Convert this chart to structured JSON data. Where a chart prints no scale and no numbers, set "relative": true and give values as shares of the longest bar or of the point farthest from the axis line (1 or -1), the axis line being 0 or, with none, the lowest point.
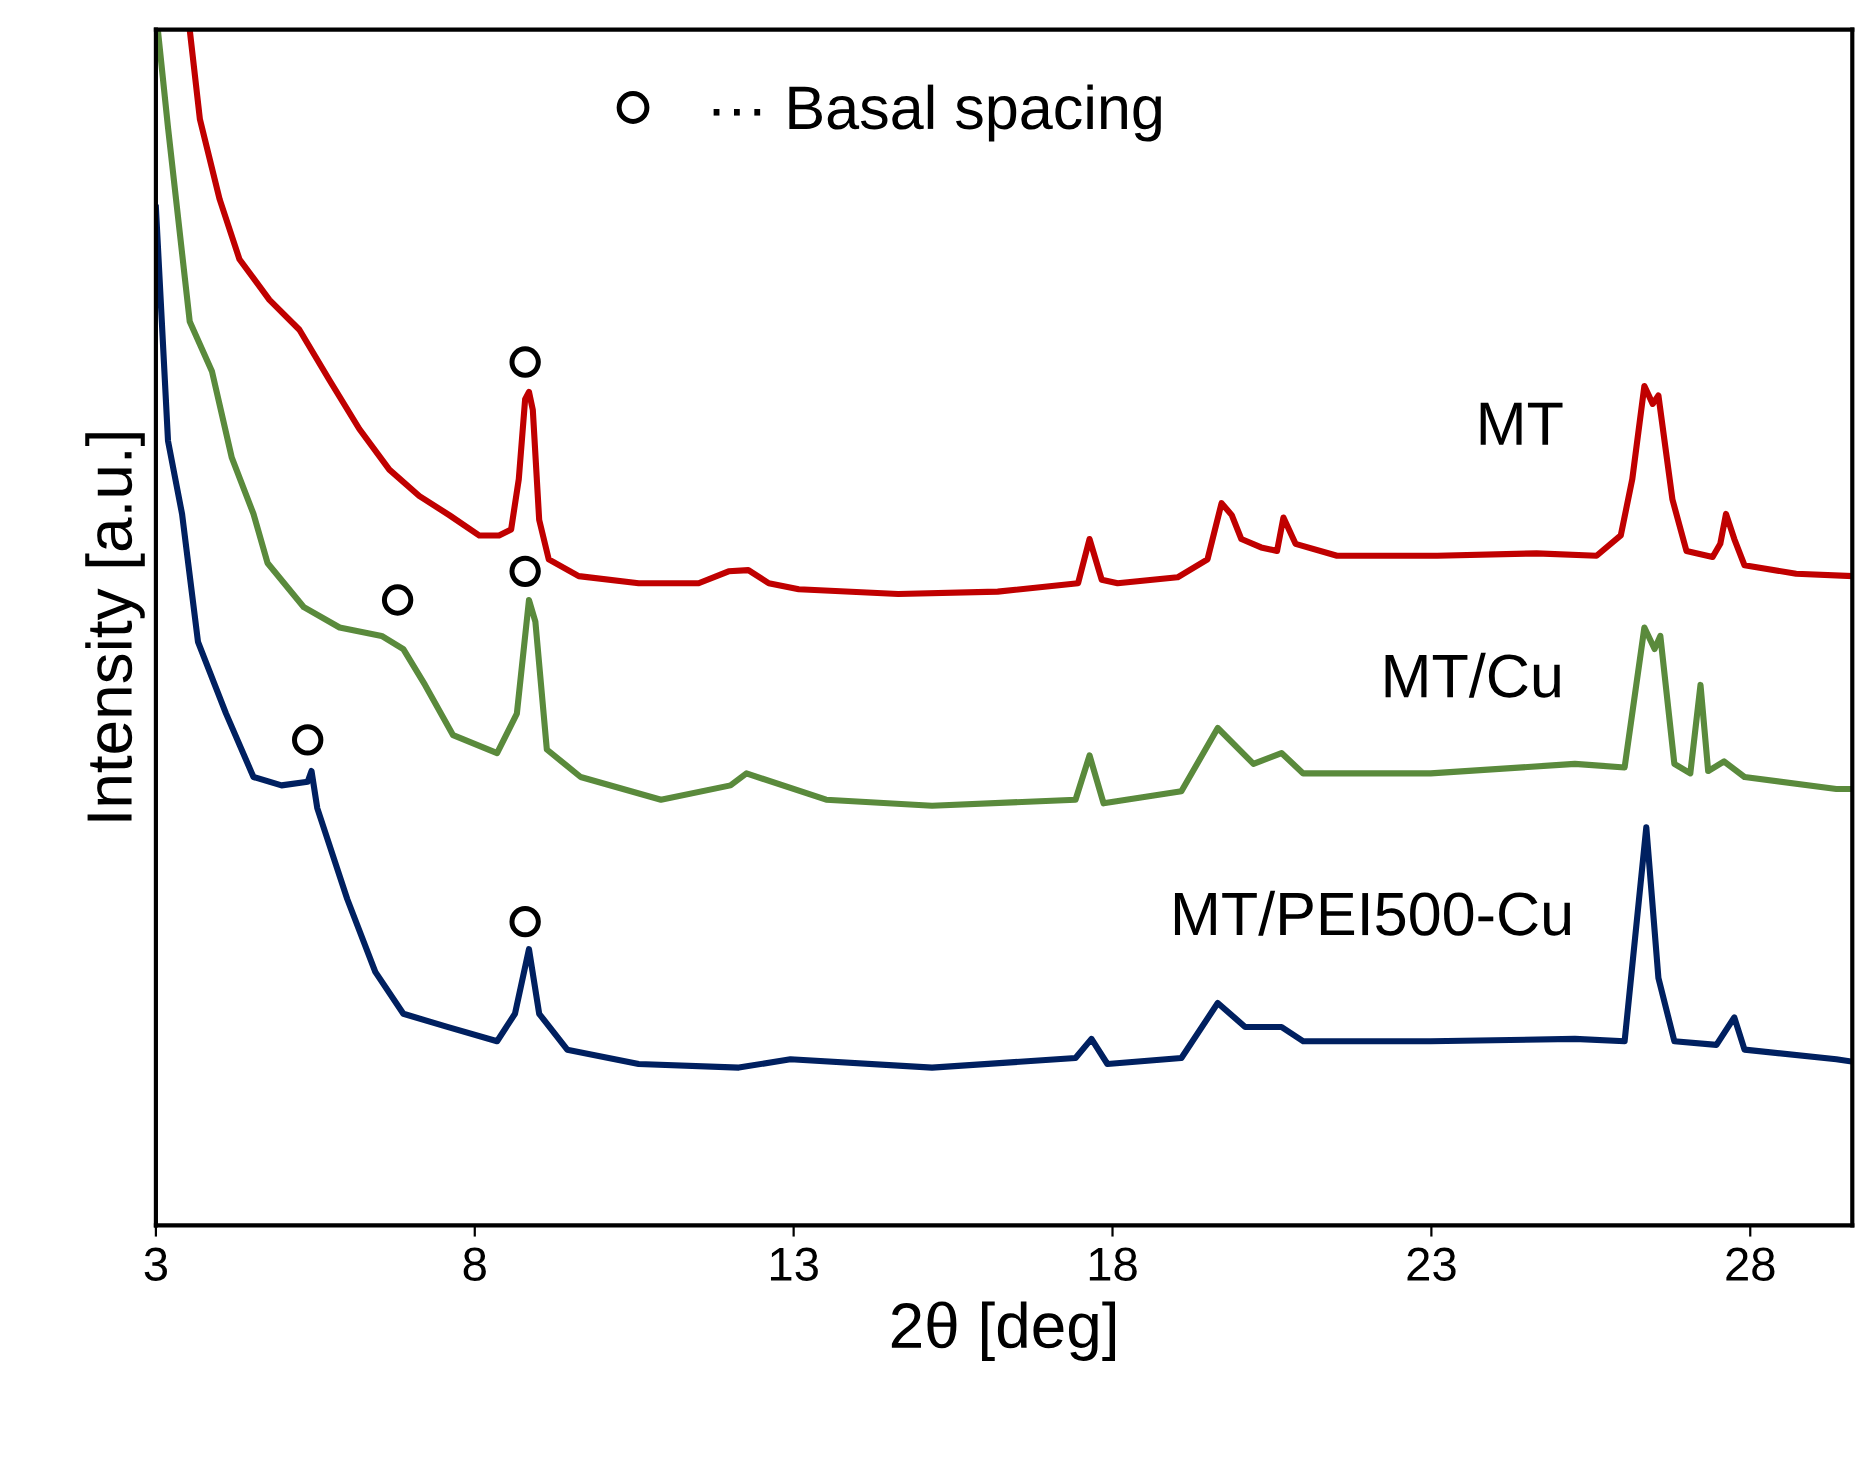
{
  "chart_data": {
    "type": "line",
    "relative": true,
    "xlabel": "2θ [deg]",
    "ylabel": "Intensity [a.u.]",
    "xlim": [
      3,
      29.6
    ],
    "xticks": [
      3,
      8,
      13,
      18,
      23,
      28
    ],
    "grid": false,
    "legend": "top",
    "marker": "none",
    "line_style": "solid",
    "series": [
      {
        "name": "MT",
        "color": "#c00000",
        "x": [
          3.53,
          3.69,
          4.0,
          4.31,
          4.78,
          5.25,
          5.72,
          6.19,
          6.66,
          7.13,
          7.6,
          8.07,
          8.38,
          8.57,
          8.69,
          8.79,
          8.85,
          8.91,
          9.01,
          9.16,
          9.63,
          10.57,
          11.51,
          11.98,
          12.29,
          12.61,
          13.08,
          14.64,
          16.2,
          17.46,
          17.64,
          17.83,
          18.08,
          19.02,
          19.49,
          19.71,
          19.87,
          20.02,
          20.33,
          20.58,
          20.68,
          20.87,
          21.52,
          23.09,
          24.65,
          25.59,
          25.97,
          26.15,
          26.34,
          26.47,
          26.56,
          26.78,
          27.0,
          27.41,
          27.53,
          27.62,
          27.75,
          27.91,
          28.72,
          29.6
        ],
        "values": [
          1.0,
          0.925,
          0.858,
          0.808,
          0.774,
          0.749,
          0.707,
          0.666,
          0.632,
          0.61,
          0.594,
          0.577,
          0.577,
          0.582,
          0.624,
          0.691,
          0.697,
          0.682,
          0.59,
          0.557,
          0.543,
          0.537,
          0.537,
          0.547,
          0.548,
          0.537,
          0.532,
          0.528,
          0.53,
          0.537,
          0.574,
          0.54,
          0.537,
          0.542,
          0.557,
          0.604,
          0.594,
          0.574,
          0.567,
          0.564,
          0.592,
          0.57,
          0.56,
          0.56,
          0.562,
          0.56,
          0.577,
          0.624,
          0.702,
          0.687,
          0.694,
          0.607,
          0.564,
          0.559,
          0.57,
          0.595,
          0.574,
          0.552,
          0.545,
          0.543
        ]
      },
      {
        "name": "MT/Cu",
        "color": "#5a8a3c",
        "x": [
          3.03,
          3.19,
          3.53,
          3.88,
          4.19,
          4.53,
          4.75,
          5.32,
          5.88,
          6.54,
          6.88,
          7.22,
          7.66,
          8.35,
          8.66,
          8.85,
          8.95,
          9.13,
          9.66,
          10.92,
          12.01,
          12.26,
          13.51,
          15.17,
          17.42,
          17.64,
          17.86,
          19.08,
          19.65,
          20.21,
          20.65,
          20.99,
          22.99,
          25.25,
          26.03,
          26.34,
          26.5,
          26.59,
          26.81,
          27.06,
          27.22,
          27.34,
          27.59,
          27.91,
          29.35,
          29.6
        ],
        "values": [
          1.0,
          0.918,
          0.756,
          0.714,
          0.642,
          0.595,
          0.554,
          0.517,
          0.5,
          0.493,
          0.482,
          0.452,
          0.41,
          0.395,
          0.428,
          0.523,
          0.505,
          0.398,
          0.375,
          0.356,
          0.368,
          0.378,
          0.356,
          0.351,
          0.356,
          0.393,
          0.353,
          0.363,
          0.416,
          0.386,
          0.395,
          0.378,
          0.378,
          0.386,
          0.383,
          0.5,
          0.482,
          0.493,
          0.386,
          0.378,
          0.452,
          0.38,
          0.388,
          0.375,
          0.365,
          0.365
        ]
      },
      {
        "name": "MT/PEI500-Cu",
        "color": "#002060",
        "x": [
          3.0,
          3.19,
          3.41,
          3.66,
          4.1,
          4.53,
          4.97,
          5.38,
          5.44,
          5.53,
          6.0,
          6.44,
          6.88,
          7.57,
          8.35,
          8.63,
          8.85,
          9.01,
          9.45,
          10.57,
          12.14,
          12.95,
          15.17,
          17.42,
          17.67,
          17.92,
          19.08,
          19.65,
          20.08,
          20.65,
          20.99,
          22.99,
          25.25,
          26.03,
          26.37,
          26.56,
          26.81,
          27.47,
          27.75,
          27.91,
          29.35,
          29.6
        ],
        "values": [
          0.851,
          0.656,
          0.595,
          0.488,
          0.428,
          0.375,
          0.368,
          0.371,
          0.38,
          0.349,
          0.273,
          0.212,
          0.177,
          0.166,
          0.154,
          0.177,
          0.231,
          0.177,
          0.147,
          0.135,
          0.132,
          0.139,
          0.132,
          0.14,
          0.156,
          0.135,
          0.14,
          0.186,
          0.166,
          0.166,
          0.154,
          0.154,
          0.156,
          0.154,
          0.333,
          0.207,
          0.154,
          0.151,
          0.174,
          0.147,
          0.139,
          0.137
        ]
      },
      {
        "name": "··· Basal spacing",
        "type": "scatter",
        "marker": "circle",
        "color": "#000000",
        "x": [
          8.79,
          6.79,
          8.79,
          5.38,
          8.79
        ],
        "values": [
          0.722,
          0.523,
          0.547,
          0.406,
          0.254
        ]
      }
    ]
  }
}
